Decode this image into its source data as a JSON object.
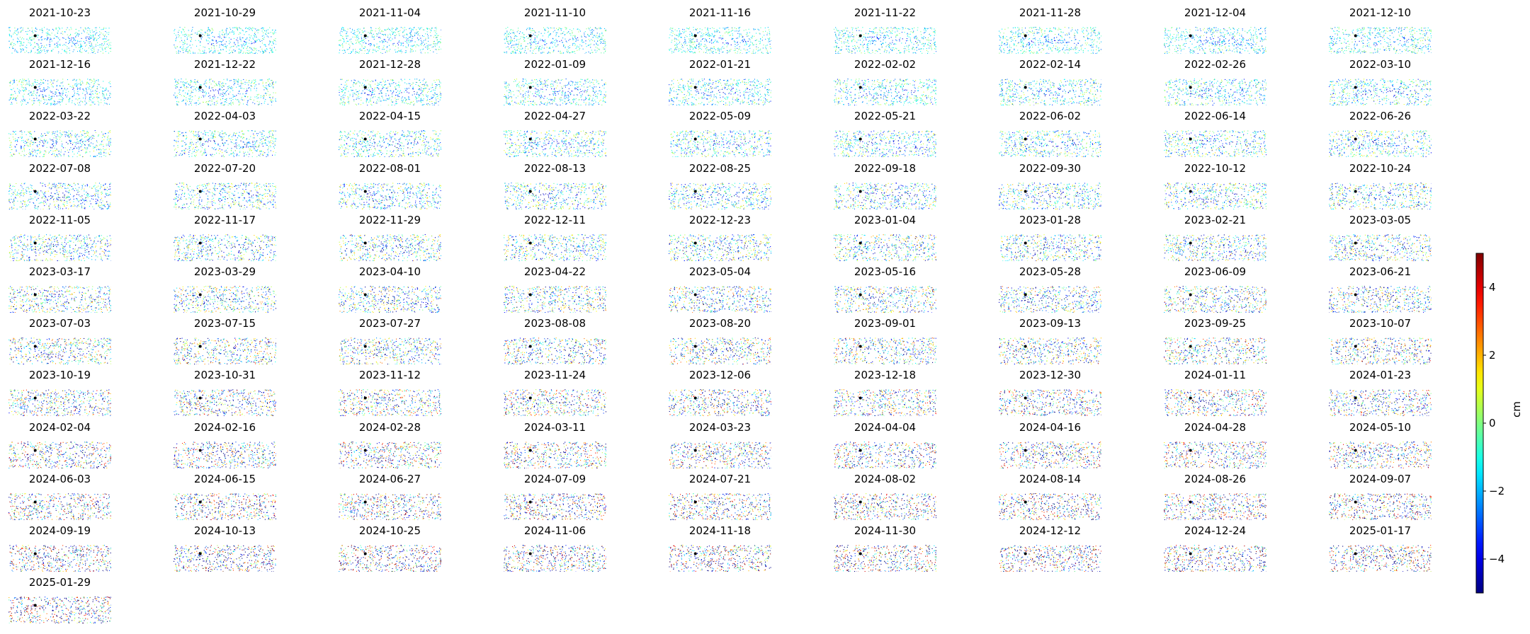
{
  "chart_data": {
    "type": "scatter",
    "description_free": true,
    "panel_titles": [
      "2021-10-23",
      "2021-10-29",
      "2021-11-04",
      "2021-11-10",
      "2021-11-16",
      "2021-11-22",
      "2021-11-28",
      "2021-12-04",
      "2021-12-10",
      "2021-12-16",
      "2021-12-22",
      "2021-12-28",
      "2022-01-09",
      "2022-01-21",
      "2022-02-02",
      "2022-02-14",
      "2022-02-26",
      "2022-03-10",
      "2022-03-22",
      "2022-04-03",
      "2022-04-15",
      "2022-04-27",
      "2022-05-09",
      "2022-05-21",
      "2022-06-02",
      "2022-06-14",
      "2022-06-26",
      "2022-07-08",
      "2022-07-20",
      "2022-08-01",
      "2022-08-13",
      "2022-08-25",
      "2022-09-18",
      "2022-09-30",
      "2022-10-12",
      "2022-10-24",
      "2022-11-05",
      "2022-11-17",
      "2022-11-29",
      "2022-12-11",
      "2022-12-23",
      "2023-01-04",
      "2023-01-28",
      "2023-02-21",
      "2023-03-05",
      "2023-03-17",
      "2023-03-29",
      "2023-04-10",
      "2023-04-22",
      "2023-05-04",
      "2023-05-16",
      "2023-05-28",
      "2023-06-09",
      "2023-06-21",
      "2023-07-03",
      "2023-07-15",
      "2023-07-27",
      "2023-08-08",
      "2023-08-20",
      "2023-09-01",
      "2023-09-13",
      "2023-09-25",
      "2023-10-07",
      "2023-10-19",
      "2023-10-31",
      "2023-11-12",
      "2023-11-24",
      "2023-12-06",
      "2023-12-18",
      "2023-12-30",
      "2024-01-11",
      "2024-01-23",
      "2024-02-04",
      "2024-02-16",
      "2024-02-28",
      "2024-03-11",
      "2024-03-23",
      "2024-04-04",
      "2024-04-16",
      "2024-04-28",
      "2024-05-10",
      "2024-06-03",
      "2024-06-15",
      "2024-06-27",
      "2024-07-09",
      "2024-07-21",
      "2024-08-02",
      "2024-08-14",
      "2024-08-26",
      "2024-09-07",
      "2024-09-19",
      "2024-10-13",
      "2024-10-25",
      "2024-11-06",
      "2024-11-18",
      "2024-11-30",
      "2024-12-12",
      "2024-12-24",
      "2025-01-17",
      "2025-01-29"
    ],
    "colorbar": {
      "label": "cm",
      "range": [
        -5,
        5
      ],
      "ticks": [
        -4,
        -2,
        0,
        2,
        4
      ],
      "tick_labels": [
        "−4",
        "−2",
        "0",
        "2",
        "4"
      ],
      "colormap": "jet"
    },
    "grid": false,
    "axes_visible": false
  }
}
